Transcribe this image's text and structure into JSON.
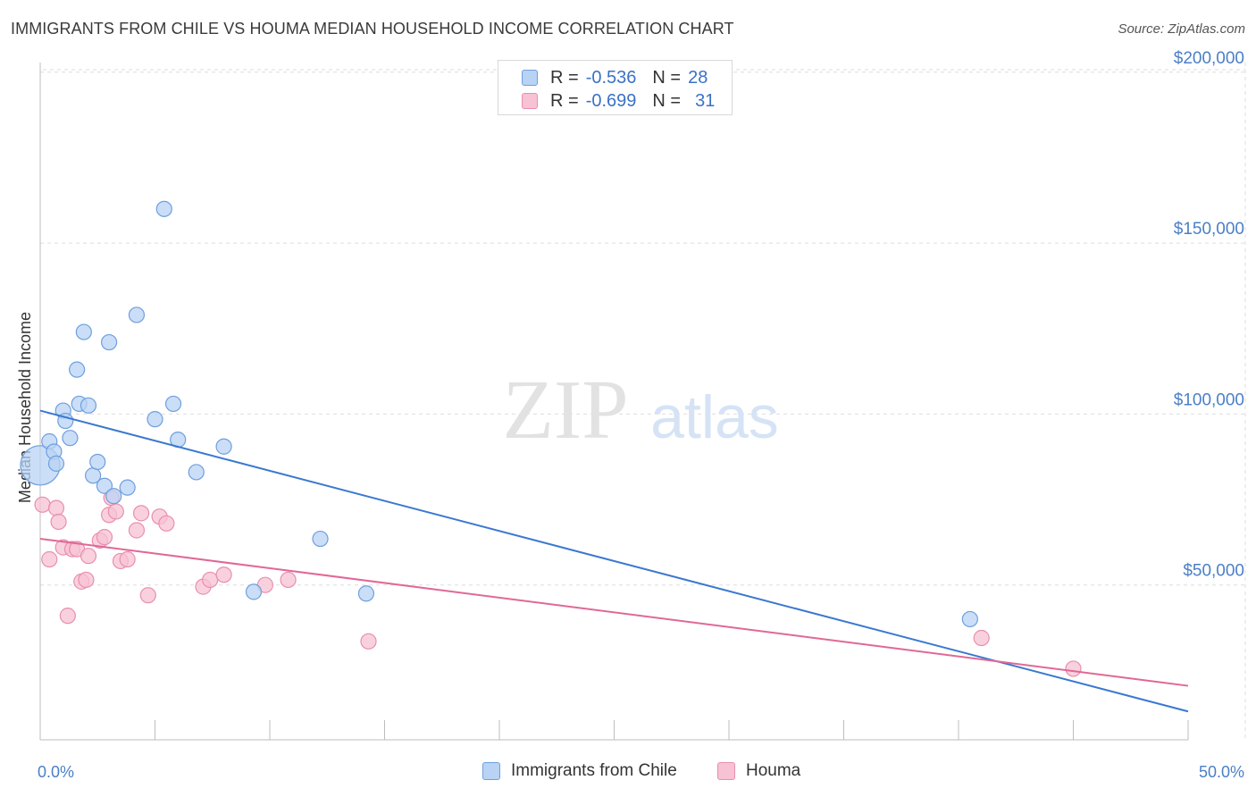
{
  "header": {
    "title": "IMMIGRANTS FROM CHILE VS HOUMA MEDIAN HOUSEHOLD INCOME CORRELATION CHART",
    "source": "Source: ZipAtlas.com"
  },
  "watermark": {
    "zip": "ZIP",
    "atlas": "atlas"
  },
  "legend": {
    "rows": [
      {
        "r_label": "R =",
        "r_value": "-0.536",
        "n_label": "N =",
        "n_value": "28"
      },
      {
        "r_label": "R =",
        "r_value": "-0.699",
        "n_label": "N =",
        "n_value": "31"
      }
    ]
  },
  "bottom_legend": {
    "series_a": "Immigrants from Chile",
    "series_b": "Houma"
  },
  "colors": {
    "blue_fill": "#b9d3f4",
    "blue_stroke": "#6e9fde",
    "blue_line": "#3a78d0",
    "pink_fill": "#f7c2d3",
    "pink_stroke": "#e88fad",
    "pink_line": "#e06896",
    "grid": "#dedede",
    "axis": "#bdbdbd"
  },
  "chart_data": {
    "type": "scatter",
    "title": "IMMIGRANTS FROM CHILE VS HOUMA MEDIAN HOUSEHOLD INCOME CORRELATION CHART",
    "xlabel": "",
    "ylabel": "Median Household Income",
    "xlim": [
      0,
      50
    ],
    "ylim": [
      0,
      205000
    ],
    "x_tick_labels": [
      "0.0%",
      "50.0%"
    ],
    "y_ticks": [
      50000,
      100000,
      150000,
      200000
    ],
    "y_tick_labels": [
      "$50,000",
      "$100,000",
      "$150,000",
      "$200,000"
    ],
    "grid": true,
    "series": [
      {
        "name": "Immigrants from Chile",
        "r": -0.536,
        "n": 28,
        "trend": {
          "x0": 0,
          "y0": 101000,
          "x1": 50,
          "y1": 13000
        },
        "points": [
          {
            "x": 0.0,
            "y": 85000,
            "big": true
          },
          {
            "x": 0.4,
            "y": 92000
          },
          {
            "x": 0.6,
            "y": 89000
          },
          {
            "x": 0.7,
            "y": 85500
          },
          {
            "x": 1.0,
            "y": 101000
          },
          {
            "x": 1.1,
            "y": 98000
          },
          {
            "x": 1.3,
            "y": 93000
          },
          {
            "x": 1.6,
            "y": 113000
          },
          {
            "x": 1.7,
            "y": 103000
          },
          {
            "x": 1.9,
            "y": 124000
          },
          {
            "x": 2.1,
            "y": 102500
          },
          {
            "x": 2.3,
            "y": 82000
          },
          {
            "x": 2.5,
            "y": 86000
          },
          {
            "x": 2.8,
            "y": 79000
          },
          {
            "x": 3.0,
            "y": 121000
          },
          {
            "x": 3.2,
            "y": 76000
          },
          {
            "x": 3.8,
            "y": 78500
          },
          {
            "x": 4.2,
            "y": 129000
          },
          {
            "x": 5.0,
            "y": 98500
          },
          {
            "x": 5.4,
            "y": 160000
          },
          {
            "x": 5.8,
            "y": 103000
          },
          {
            "x": 6.0,
            "y": 92500
          },
          {
            "x": 6.8,
            "y": 83000
          },
          {
            "x": 8.0,
            "y": 90500
          },
          {
            "x": 9.3,
            "y": 48000
          },
          {
            "x": 12.2,
            "y": 63500
          },
          {
            "x": 14.2,
            "y": 47500
          },
          {
            "x": 40.5,
            "y": 40000
          }
        ]
      },
      {
        "name": "Houma",
        "r": -0.699,
        "n": 31,
        "trend": {
          "x0": 0,
          "y0": 63500,
          "x1": 50,
          "y1": 20500
        },
        "points": [
          {
            "x": 0.1,
            "y": 73500
          },
          {
            "x": 0.4,
            "y": 57500
          },
          {
            "x": 0.7,
            "y": 72500
          },
          {
            "x": 0.8,
            "y": 68500
          },
          {
            "x": 1.0,
            "y": 61000
          },
          {
            "x": 1.2,
            "y": 41000
          },
          {
            "x": 1.4,
            "y": 60500
          },
          {
            "x": 1.6,
            "y": 60500
          },
          {
            "x": 1.8,
            "y": 51000
          },
          {
            "x": 2.0,
            "y": 51500
          },
          {
            "x": 2.1,
            "y": 58500
          },
          {
            "x": 2.6,
            "y": 63000
          },
          {
            "x": 2.8,
            "y": 64000
          },
          {
            "x": 3.0,
            "y": 70500
          },
          {
            "x": 3.1,
            "y": 75500
          },
          {
            "x": 3.3,
            "y": 71500
          },
          {
            "x": 3.5,
            "y": 57000
          },
          {
            "x": 3.8,
            "y": 57500
          },
          {
            "x": 4.2,
            "y": 66000
          },
          {
            "x": 4.4,
            "y": 71000
          },
          {
            "x": 4.7,
            "y": 47000
          },
          {
            "x": 5.2,
            "y": 70000
          },
          {
            "x": 5.5,
            "y": 68000
          },
          {
            "x": 7.1,
            "y": 49500
          },
          {
            "x": 7.4,
            "y": 51500
          },
          {
            "x": 8.0,
            "y": 53000
          },
          {
            "x": 9.8,
            "y": 50000
          },
          {
            "x": 10.8,
            "y": 51500
          },
          {
            "x": 14.3,
            "y": 33500
          },
          {
            "x": 41.0,
            "y": 34500
          },
          {
            "x": 45.0,
            "y": 25500
          }
        ]
      }
    ]
  }
}
